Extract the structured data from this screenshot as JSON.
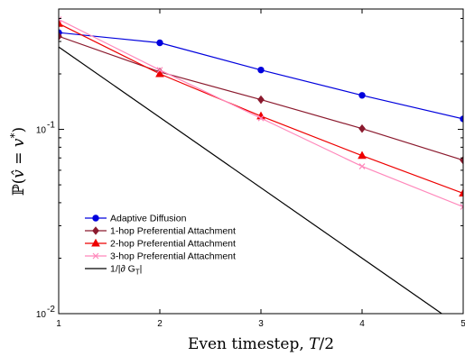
{
  "chart_data": {
    "type": "line",
    "x": [
      1,
      2,
      3,
      4,
      5
    ],
    "x_ticks": [
      1,
      2,
      3,
      4,
      5
    ],
    "xlim": [
      1,
      5
    ],
    "ylim": [
      0.01,
      0.45
    ],
    "yscale": "log",
    "y_ticks": [
      {
        "value": 0.01,
        "base": "10",
        "exp": "-2"
      },
      {
        "value": 0.1,
        "base": "10",
        "exp": "-1"
      }
    ],
    "xlabel": "Even timestep, T/2",
    "ylabel": "ℙ(v̂ = v*)",
    "grid": false,
    "legend_position": "lower-left",
    "series": [
      {
        "name": "Adaptive Diffusion",
        "color": "#0000dd",
        "marker": "circle",
        "values": [
          0.335,
          0.295,
          0.21,
          0.153,
          0.114
        ]
      },
      {
        "name": "1-hop Preferential Attachment",
        "color": "#8b1a2e",
        "marker": "diamond",
        "values": [
          0.32,
          0.205,
          0.145,
          0.101,
          0.068
        ]
      },
      {
        "name": "2-hop Preferential Attachment",
        "color": "#ee0000",
        "marker": "triangle",
        "values": [
          0.375,
          0.2,
          0.118,
          0.072,
          0.045
        ]
      },
      {
        "name": "3-hop Preferential Attachment",
        "color": "#ff88bb",
        "marker": "x",
        "values": [
          0.395,
          0.21,
          0.115,
          0.063,
          0.038
        ]
      },
      {
        "name": "1/|∂ G_T|",
        "color": "#000000",
        "marker": "none",
        "x": [
          1,
          5
        ],
        "values": [
          0.28,
          0.0083
        ]
      }
    ]
  }
}
